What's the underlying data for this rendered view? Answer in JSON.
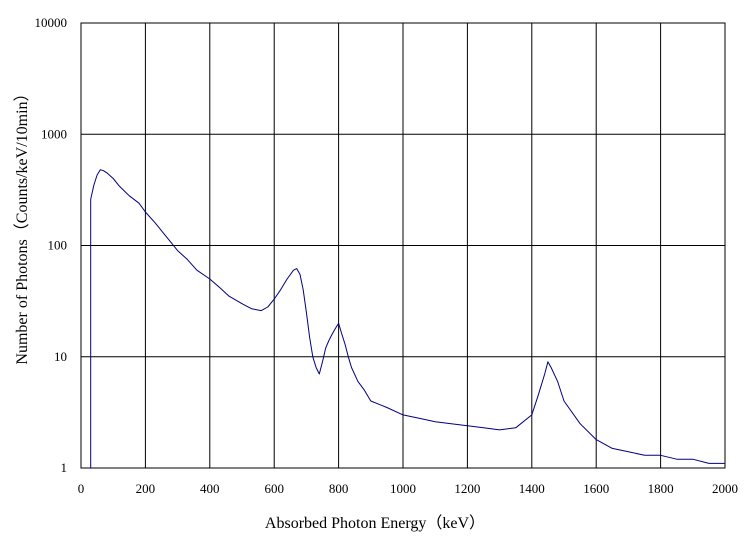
{
  "chart_data": {
    "type": "line",
    "title": "",
    "xlabel": "Absorbed Photon Energy（keV）",
    "ylabel": "Number  of Photons（Counts/keV/10min）",
    "xlim": [
      0,
      2000
    ],
    "ylim": [
      1,
      10000
    ],
    "yscale": "log",
    "grid": true,
    "legend": "none",
    "x_ticks": [
      "0",
      "200",
      "400",
      "600",
      "800",
      "1000",
      "1200",
      "1400",
      "1600",
      "1800",
      "2000"
    ],
    "y_ticks": [
      "1",
      "10",
      "100",
      "1000",
      "10000"
    ],
    "series_color": "#000080",
    "series": [
      {
        "name": "",
        "x": [
          30,
          40,
          50,
          60,
          70,
          80,
          100,
          120,
          150,
          180,
          200,
          230,
          260,
          300,
          330,
          360,
          400,
          430,
          460,
          500,
          530,
          560,
          580,
          600,
          620,
          640,
          660,
          670,
          680,
          690,
          700,
          710,
          720,
          730,
          740,
          750,
          760,
          770,
          780,
          790,
          800,
          810,
          820,
          830,
          840,
          860,
          880,
          900,
          950,
          1000,
          1050,
          1100,
          1150,
          1200,
          1250,
          1300,
          1350,
          1400,
          1420,
          1440,
          1450,
          1460,
          1480,
          1500,
          1550,
          1600,
          1650,
          1700,
          1750,
          1800,
          1850,
          1900,
          1950,
          2000
        ],
        "y": [
          260,
          350,
          430,
          480,
          470,
          450,
          400,
          340,
          280,
          240,
          200,
          160,
          125,
          90,
          75,
          60,
          50,
          42,
          35,
          30,
          27,
          26,
          28,
          33,
          40,
          50,
          60,
          62,
          55,
          40,
          25,
          15,
          10,
          8,
          7,
          9,
          12,
          14,
          16,
          18,
          20,
          16,
          13,
          10,
          8,
          6,
          5,
          4,
          3.5,
          3,
          2.8,
          2.6,
          2.5,
          2.4,
          2.3,
          2.2,
          2.3,
          3,
          4.5,
          7,
          9,
          8,
          6,
          4,
          2.5,
          1.8,
          1.5,
          1.4,
          1.3,
          1.3,
          1.2,
          1.2,
          1.1,
          1.1
        ]
      }
    ]
  }
}
